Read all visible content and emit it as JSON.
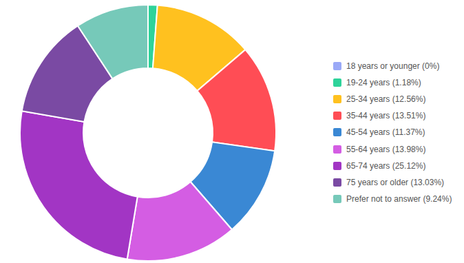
{
  "chart_data": {
    "type": "donut",
    "categories": [
      "18 years or younger (0%)",
      "19-24 years (1.18%)",
      "25-34 years (12.56%)",
      "35-44 years (13.51%)",
      "45-54 years (11.37%)",
      "55-64 years (13.98%)",
      "65-74 years (25.12%)",
      "75 years or older (13.03%)",
      "Prefer not to answer (9.24%)"
    ],
    "values": [
      0,
      1.18,
      12.56,
      13.51,
      11.37,
      13.98,
      25.12,
      13.03,
      9.24
    ],
    "colors": [
      "#9aa9f7",
      "#2ed39a",
      "#ffc11f",
      "#ff4d55",
      "#3a88d4",
      "#d45de3",
      "#a235c4",
      "#7a4aa3",
      "#76c9b9"
    ],
    "legend": "right"
  }
}
